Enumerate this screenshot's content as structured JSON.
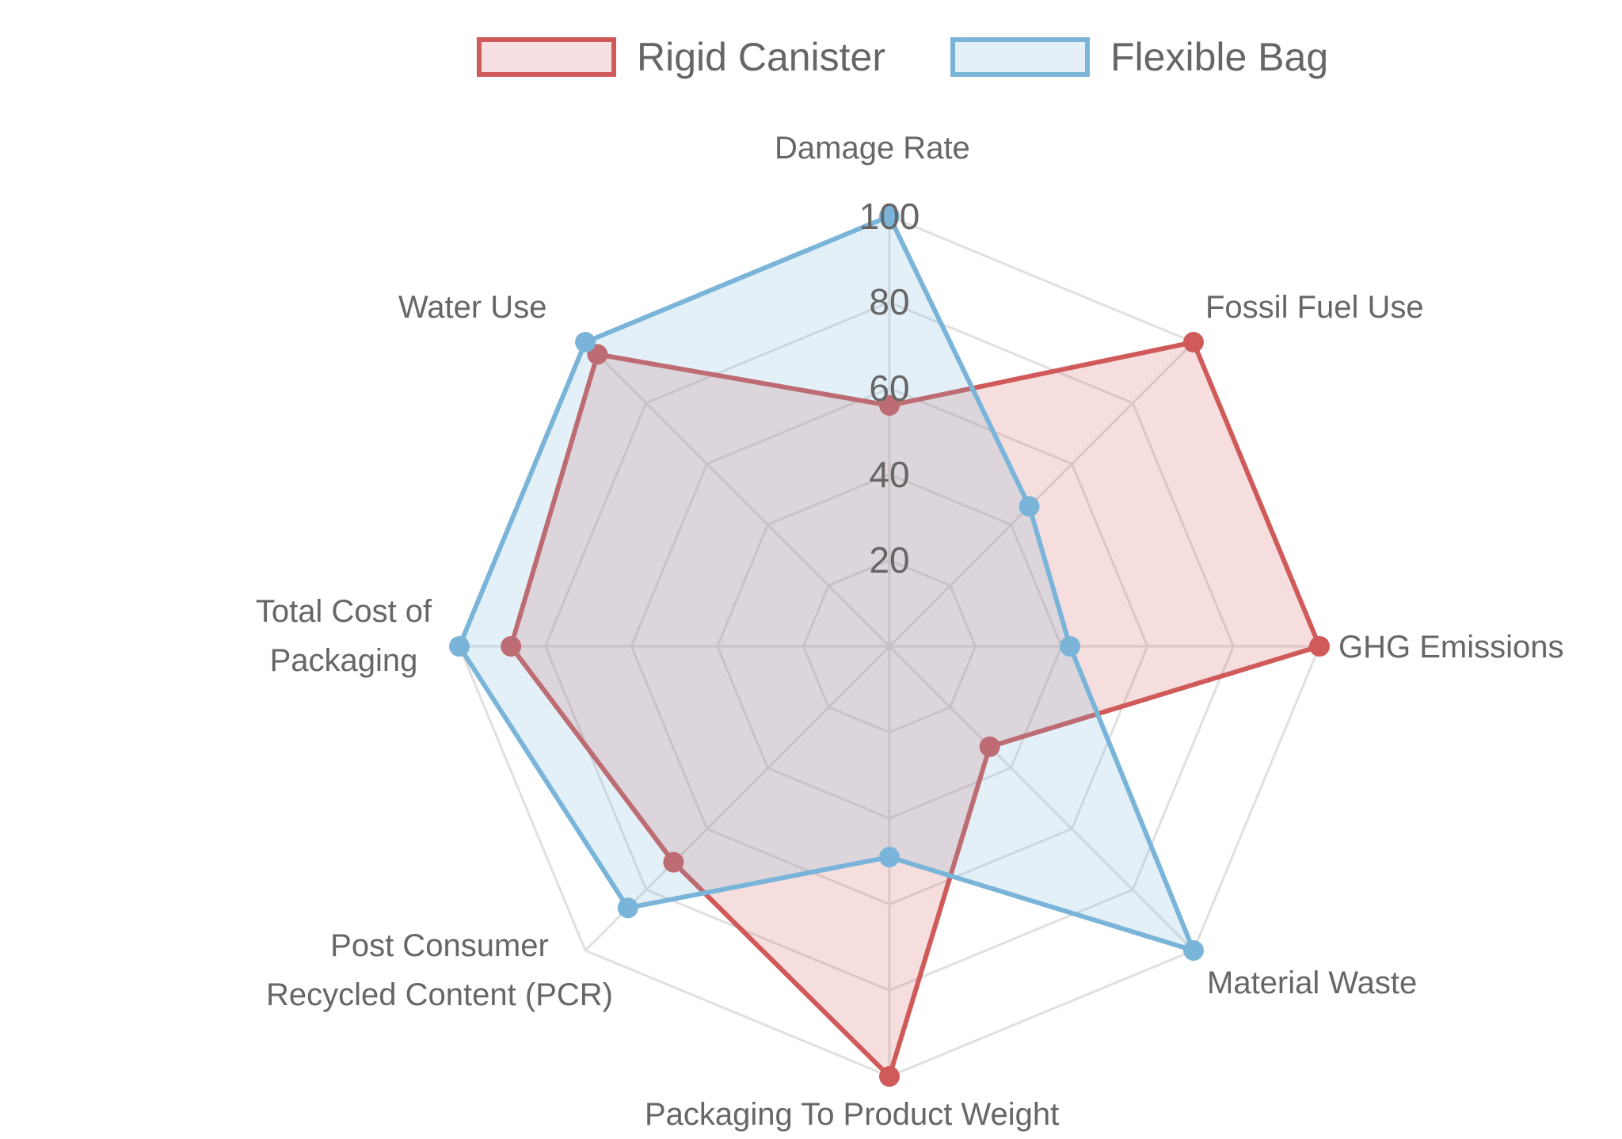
{
  "chart_data": {
    "type": "radar",
    "title": "",
    "categories": [
      "Damage Rate",
      "Fossil Fuel Use",
      "GHG Emissions",
      "Material Waste",
      "Packaging To Product Weight",
      "Post Consumer Recycled Content (PCR)",
      "Total Cost of Packaging",
      "Water Use"
    ],
    "series": [
      {
        "name": "Rigid Canister",
        "color": "#d05a5a",
        "fill": "rgba(208,90,90,0.2)",
        "values": [
          56,
          100,
          100,
          33,
          100,
          71,
          88,
          96
        ]
      },
      {
        "name": "Flexible Bag",
        "color": "#7ab5d9",
        "fill": "rgba(122,181,217,0.2)",
        "values": [
          100,
          46,
          42,
          100,
          49,
          86,
          100,
          100
        ]
      }
    ],
    "r_ticks": [
      20,
      40,
      60,
      80,
      100
    ],
    "r_range": [
      0,
      100
    ],
    "grid": true,
    "legend_position": "top"
  },
  "legend": {
    "items": [
      {
        "label": "Rigid Canister",
        "border": "#d05a5a",
        "fill": "#f5dfe0"
      },
      {
        "label": "Flexible Bag",
        "border": "#7ab5d9",
        "fill": "#e4eff7"
      }
    ]
  },
  "axis_labels": {
    "damage_rate": "Damage Rate",
    "fossil_fuel_use": "Fossil Fuel Use",
    "ghg_emissions": "GHG Emissions",
    "material_waste": "Material Waste",
    "packaging_to_product_weight": "Packaging To Product Weight",
    "pcr_line1": "Post Consumer",
    "pcr_line2": "Recycled Content (PCR)",
    "total_cost_line1": "Total Cost of",
    "total_cost_line2": "Packaging",
    "water_use": "Water Use"
  },
  "ticks": {
    "t20": "20",
    "t40": "40",
    "t60": "60",
    "t80": "80",
    "t100": "100"
  }
}
